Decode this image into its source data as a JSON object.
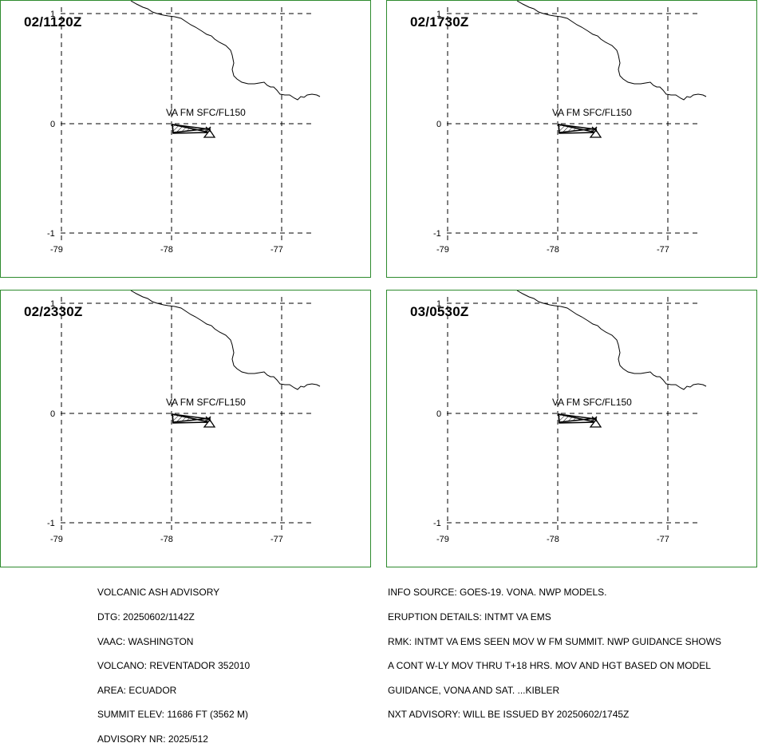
{
  "panels": [
    {
      "time": "02/1120Z",
      "label": "VA FM SFC/FL150"
    },
    {
      "time": "02/1730Z",
      "label": "VA FM SFC/FL150"
    },
    {
      "time": "02/2330Z",
      "label": "VA FM SFC/FL150"
    },
    {
      "time": "03/0530Z",
      "label": "VA FM SFC/FL150"
    }
  ],
  "map": {
    "lat_ticks": [
      "1",
      "0",
      "-1"
    ],
    "lon_ticks": [
      "-79",
      "-78",
      "-77"
    ],
    "colors": {
      "border": "#2e8b2e",
      "lines": "#000000"
    },
    "features": [
      "coastline",
      "ash-polygon",
      "volcano-marker"
    ]
  },
  "advisory_left": [
    "VOLCANIC ASH ADVISORY",
    "DTG: 20250602/1142Z",
    "VAAC: WASHINGTON",
    "VOLCANO: REVENTADOR 352010",
    "AREA: ECUADOR",
    "SUMMIT ELEV: 11686 FT (3562 M)",
    "ADVISORY NR: 2025/512"
  ],
  "advisory_right": [
    "INFO SOURCE: GOES-19. VONA. NWP MODELS.",
    "ERUPTION DETAILS: INTMT VA EMS",
    "RMK: INTMT VA EMS SEEN MOV W FM SUMMIT. NWP GUIDANCE SHOWS",
    "A CONT W-LY MOV THRU T+18 HRS. MOV AND HGT BASED ON MODEL",
    "GUIDANCE, VONA AND SAT. ...KIBLER",
    "NXT ADVISORY: WILL BE ISSUED BY 20250602/1745Z"
  ]
}
